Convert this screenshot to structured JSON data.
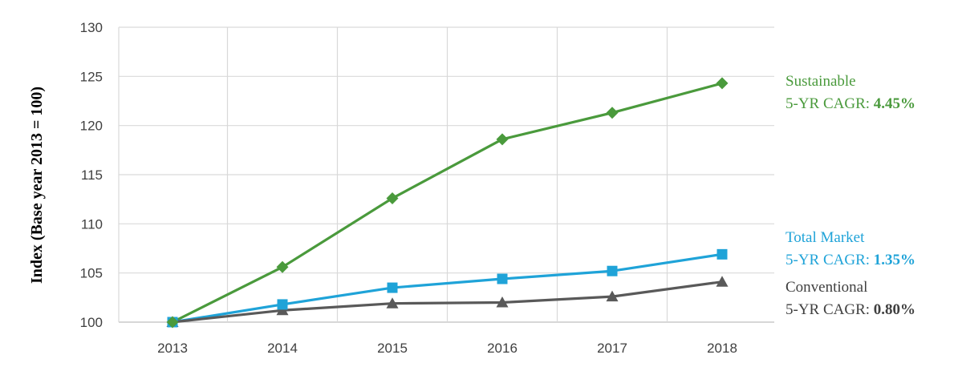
{
  "chart_data": {
    "type": "line",
    "ylabel": "Index (Base year 2013 = 100)",
    "xlabel": "",
    "title": "",
    "x": [
      "2013",
      "2014",
      "2015",
      "2016",
      "2017",
      "2018"
    ],
    "ylim": [
      100,
      130
    ],
    "yticks": [
      100,
      105,
      110,
      115,
      120,
      125,
      130
    ],
    "grid": true,
    "legend_placement": "right",
    "series": [
      {
        "key": "sustainable",
        "name": "Sustainable",
        "cagr_label": "5-YR CAGR:",
        "cagr_value": "4.45%",
        "color": "#4a9a3c",
        "marker": "diamond",
        "values": [
          100,
          105.6,
          112.6,
          118.6,
          121.3,
          124.3
        ]
      },
      {
        "key": "total",
        "name": "Total Market",
        "cagr_label": "5-YR CAGR:",
        "cagr_value": "1.35%",
        "color": "#1fa3d8",
        "marker": "square",
        "values": [
          100,
          101.8,
          103.5,
          104.4,
          105.2,
          106.9
        ]
      },
      {
        "key": "conventional",
        "name": "Conventional",
        "cagr_label": "5-YR CAGR:",
        "cagr_value": "0.80%",
        "color": "#595959",
        "marker": "triangle",
        "values": [
          100,
          101.2,
          101.9,
          102.0,
          102.6,
          104.1
        ]
      }
    ]
  }
}
